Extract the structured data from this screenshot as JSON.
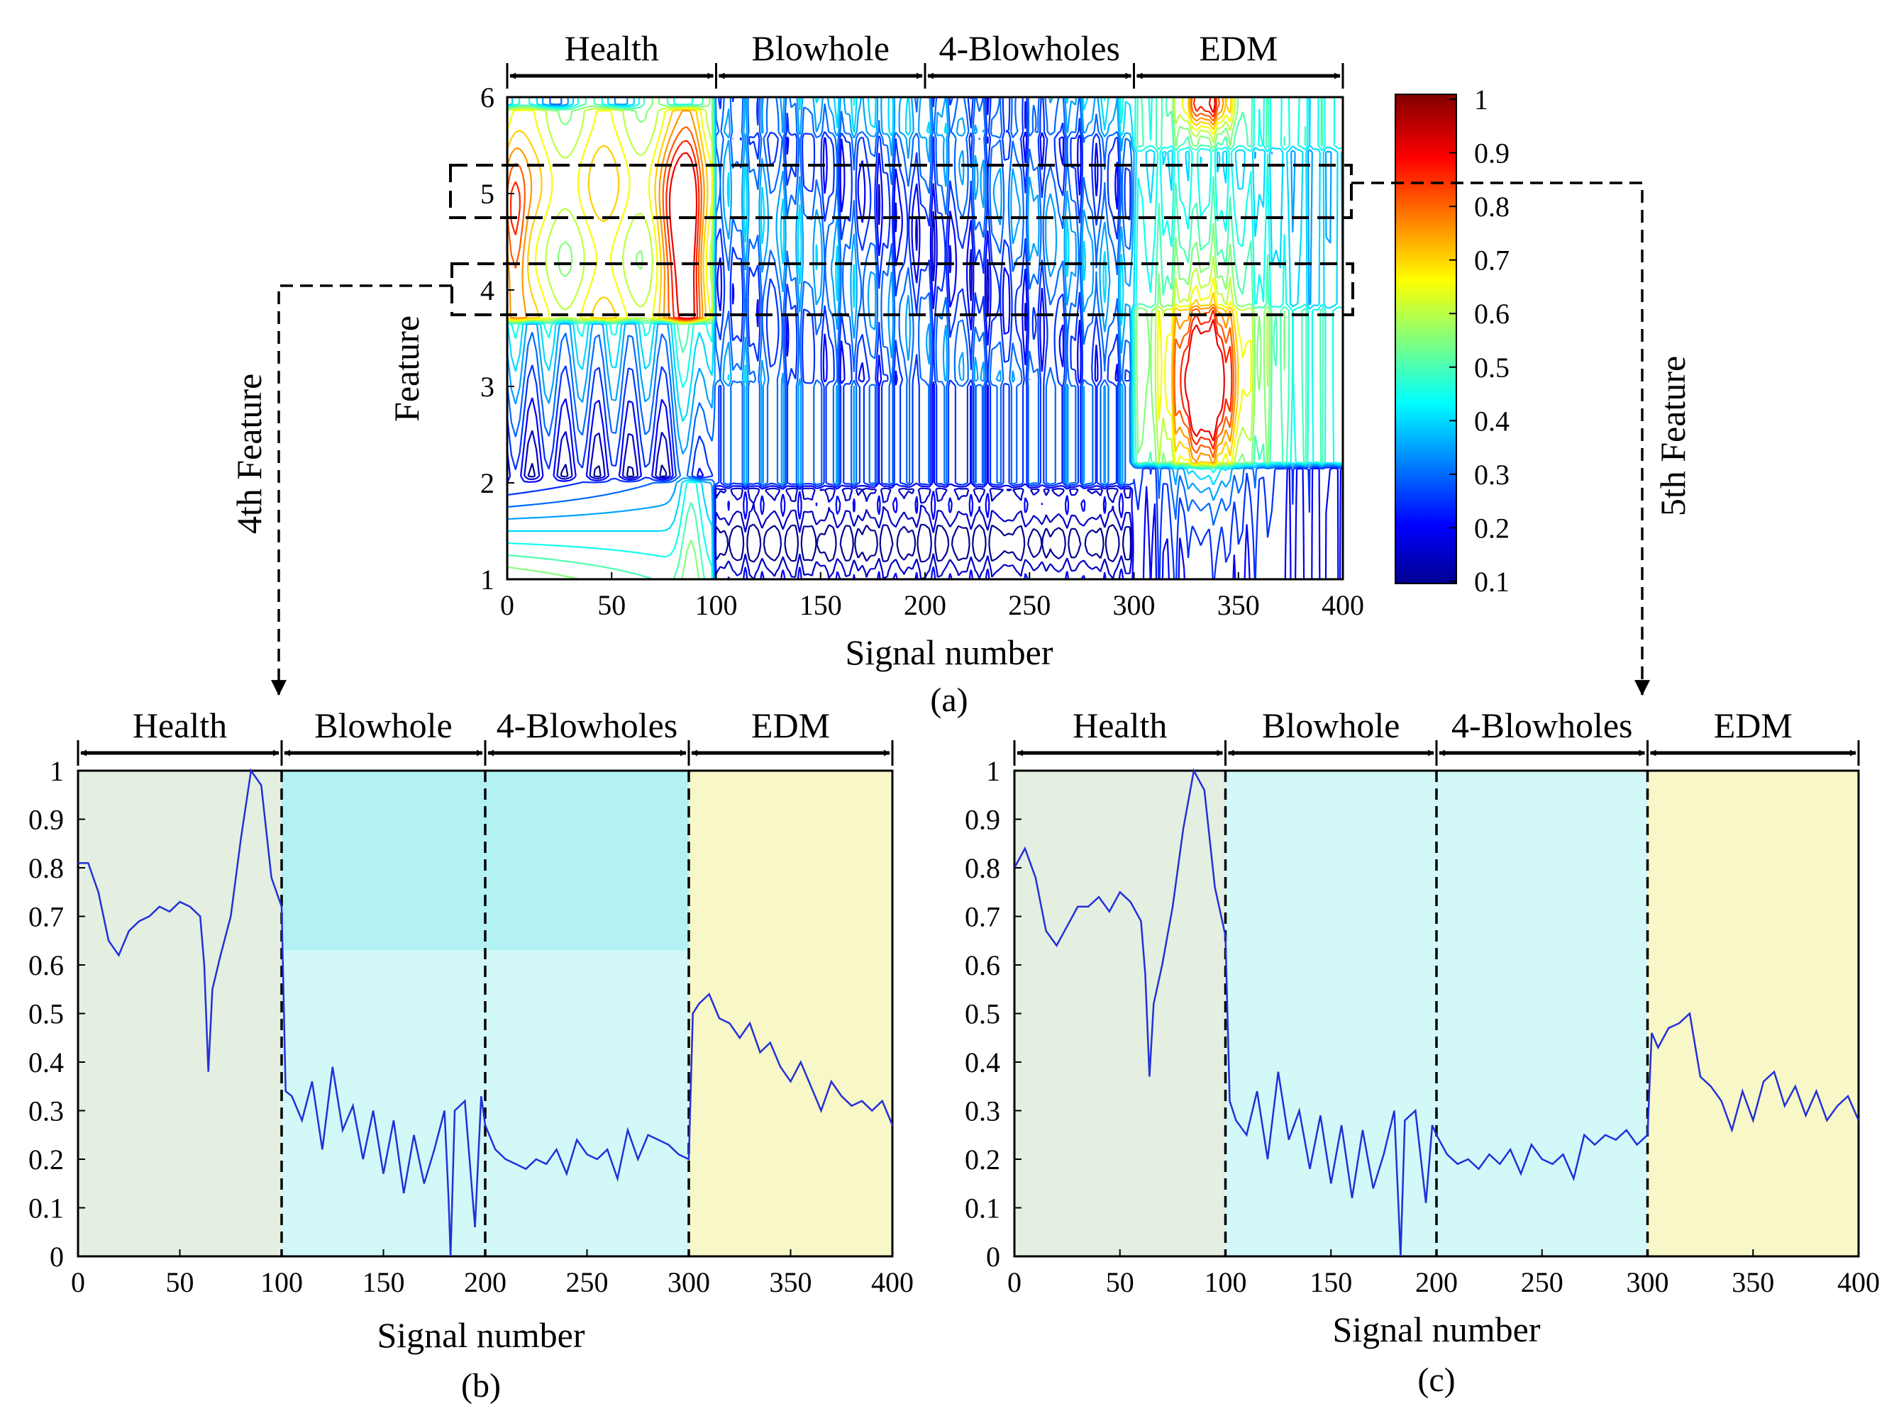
{
  "chart_data": [
    {
      "id": "a",
      "type": "heatmap",
      "subtype": "contour",
      "caption": "(a)",
      "xlabel": "Signal number",
      "ylabel": "Feature",
      "xlim": [
        0,
        400
      ],
      "ylim": [
        1,
        6
      ],
      "xticks": [
        0,
        50,
        100,
        150,
        200,
        250,
        300,
        350,
        400
      ],
      "yticks": [
        1,
        2,
        3,
        4,
        5,
        6
      ],
      "regions": [
        {
          "label": "Health",
          "range": [
            0,
            100
          ]
        },
        {
          "label": "Blowhole",
          "range": [
            100,
            200
          ]
        },
        {
          "label": "4-Blowholes",
          "range": [
            200,
            300
          ]
        },
        {
          "label": "EDM",
          "range": [
            300,
            400
          ]
        }
      ],
      "colorbar": {
        "range": [
          0.1,
          1
        ],
        "ticks": [
          1,
          0.9,
          0.8,
          0.7,
          0.6,
          0.5,
          0.4,
          0.3,
          0.2,
          0.1
        ]
      },
      "highlighted_rows": [
        5,
        4
      ],
      "contour_levels": [
        0.1,
        0.15,
        0.2,
        0.25,
        0.3,
        0.35,
        0.4,
        0.45,
        0.5,
        0.55,
        0.6,
        0.65,
        0.7,
        0.75,
        0.8,
        0.85,
        0.9
      ],
      "side_labels": {
        "left": "4th Feature",
        "right": "5th Feature"
      },
      "colors": {
        "arrow": "#000000",
        "dashed_box": "#000000"
      }
    },
    {
      "id": "b",
      "type": "line",
      "caption": "(b)",
      "xlabel": "Signal number",
      "ylabel": "",
      "xlim": [
        0,
        400
      ],
      "ylim": [
        0,
        1
      ],
      "xticks": [
        0,
        50,
        100,
        150,
        200,
        250,
        300,
        350,
        400
      ],
      "yticks": [
        0,
        0.1,
        0.2,
        0.3,
        0.4,
        0.5,
        0.6,
        0.7,
        0.8,
        0.9,
        1
      ],
      "regions": [
        {
          "label": "Health",
          "range": [
            0,
            100
          ],
          "color": "#e4efe2"
        },
        {
          "label": "Blowhole",
          "range": [
            100,
            200
          ],
          "color": "#d2f8f8"
        },
        {
          "label": "4-Blowholes",
          "range": [
            200,
            300
          ],
          "color": "#d2f8f8"
        },
        {
          "label": "EDM",
          "range": [
            300,
            400
          ],
          "color": "#f7f7c8"
        }
      ],
      "band": {
        "range": [
          100,
          300
        ],
        "y": [
          0.63,
          1
        ],
        "color": "#b3f2f4"
      },
      "dividers": [
        100,
        200,
        300
      ],
      "line_color": "#2330d8",
      "series": [
        {
          "name": "4th Feature",
          "x": [
            0,
            5,
            10,
            15,
            20,
            25,
            30,
            35,
            40,
            45,
            50,
            55,
            60,
            62,
            64,
            66,
            70,
            75,
            80,
            85,
            90,
            95,
            100,
            102,
            105,
            110,
            115,
            120,
            125,
            130,
            135,
            140,
            145,
            150,
            155,
            160,
            165,
            170,
            175,
            180,
            182,
            183,
            185,
            190,
            195,
            198,
            200,
            205,
            210,
            215,
            220,
            225,
            230,
            235,
            240,
            245,
            250,
            255,
            260,
            265,
            270,
            275,
            280,
            285,
            290,
            295,
            300,
            302,
            305,
            310,
            315,
            320,
            325,
            330,
            335,
            340,
            345,
            350,
            355,
            360,
            365,
            370,
            375,
            380,
            385,
            390,
            395,
            400
          ],
          "values": [
            0.81,
            0.81,
            0.75,
            0.65,
            0.62,
            0.67,
            0.69,
            0.7,
            0.72,
            0.71,
            0.73,
            0.72,
            0.7,
            0.6,
            0.38,
            0.55,
            0.62,
            0.7,
            0.86,
            1.0,
            0.97,
            0.78,
            0.72,
            0.34,
            0.33,
            0.28,
            0.36,
            0.22,
            0.39,
            0.26,
            0.31,
            0.2,
            0.3,
            0.17,
            0.28,
            0.13,
            0.25,
            0.15,
            0.22,
            0.3,
            0.12,
            0.0,
            0.3,
            0.32,
            0.06,
            0.33,
            0.27,
            0.22,
            0.2,
            0.19,
            0.18,
            0.2,
            0.19,
            0.22,
            0.17,
            0.24,
            0.21,
            0.2,
            0.22,
            0.16,
            0.26,
            0.2,
            0.25,
            0.24,
            0.23,
            0.21,
            0.2,
            0.5,
            0.52,
            0.54,
            0.49,
            0.48,
            0.45,
            0.48,
            0.42,
            0.44,
            0.39,
            0.36,
            0.4,
            0.35,
            0.3,
            0.36,
            0.33,
            0.31,
            0.32,
            0.3,
            0.32,
            0.27
          ]
        }
      ]
    },
    {
      "id": "c",
      "type": "line",
      "caption": "(c)",
      "xlabel": "Signal number",
      "ylabel": "",
      "xlim": [
        0,
        400
      ],
      "ylim": [
        0,
        1
      ],
      "xticks": [
        0,
        50,
        100,
        150,
        200,
        250,
        300,
        350,
        400
      ],
      "yticks": [
        0,
        0.1,
        0.2,
        0.3,
        0.4,
        0.5,
        0.6,
        0.7,
        0.8,
        0.9,
        1
      ],
      "regions": [
        {
          "label": "Health",
          "range": [
            0,
            100
          ],
          "color": "#e4efe2"
        },
        {
          "label": "Blowhole",
          "range": [
            100,
            200
          ],
          "color": "#d2f8f8"
        },
        {
          "label": "4-Blowholes",
          "range": [
            200,
            300
          ],
          "color": "#d2f8f8"
        },
        {
          "label": "EDM",
          "range": [
            300,
            400
          ],
          "color": "#f7f7c8"
        }
      ],
      "dividers": [
        100,
        200,
        300
      ],
      "line_color": "#2330d8",
      "series": [
        {
          "name": "5th Feature",
          "x": [
            0,
            5,
            10,
            15,
            20,
            25,
            30,
            35,
            40,
            45,
            50,
            55,
            60,
            62,
            64,
            66,
            70,
            75,
            80,
            85,
            90,
            95,
            100,
            102,
            105,
            110,
            115,
            120,
            125,
            130,
            135,
            140,
            145,
            150,
            155,
            160,
            165,
            170,
            175,
            180,
            182,
            183,
            185,
            190,
            195,
            198,
            200,
            205,
            210,
            215,
            220,
            225,
            230,
            235,
            240,
            245,
            250,
            255,
            260,
            265,
            270,
            275,
            280,
            285,
            290,
            295,
            300,
            302,
            305,
            310,
            315,
            320,
            325,
            330,
            335,
            340,
            345,
            350,
            355,
            360,
            365,
            370,
            375,
            380,
            385,
            390,
            395,
            400
          ],
          "values": [
            0.8,
            0.84,
            0.78,
            0.67,
            0.64,
            0.68,
            0.72,
            0.72,
            0.74,
            0.71,
            0.75,
            0.73,
            0.69,
            0.58,
            0.37,
            0.52,
            0.6,
            0.72,
            0.88,
            1.0,
            0.96,
            0.76,
            0.66,
            0.32,
            0.28,
            0.25,
            0.34,
            0.2,
            0.38,
            0.24,
            0.3,
            0.18,
            0.29,
            0.15,
            0.27,
            0.12,
            0.26,
            0.14,
            0.21,
            0.3,
            0.1,
            0.0,
            0.28,
            0.3,
            0.11,
            0.27,
            0.25,
            0.21,
            0.19,
            0.2,
            0.18,
            0.21,
            0.19,
            0.22,
            0.17,
            0.23,
            0.2,
            0.19,
            0.21,
            0.16,
            0.25,
            0.23,
            0.25,
            0.24,
            0.26,
            0.23,
            0.25,
            0.46,
            0.43,
            0.47,
            0.48,
            0.5,
            0.37,
            0.35,
            0.32,
            0.26,
            0.34,
            0.28,
            0.36,
            0.38,
            0.31,
            0.35,
            0.29,
            0.34,
            0.28,
            0.31,
            0.33,
            0.28
          ]
        }
      ]
    }
  ]
}
